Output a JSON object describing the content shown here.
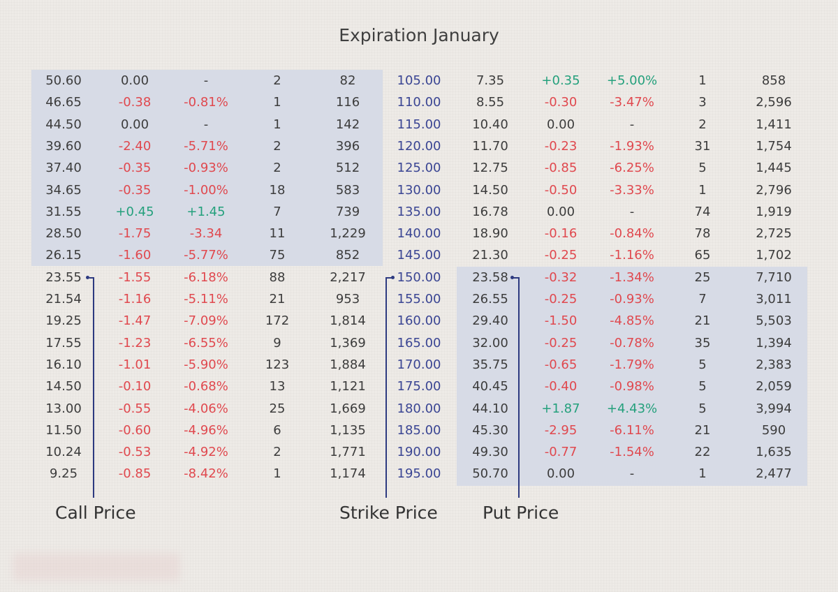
{
  "chart_data": {
    "type": "table",
    "title": "Expiration January",
    "labels": {
      "call": "Call Price",
      "strike": "Strike Price",
      "put": "Put Price"
    },
    "highlight_color": "#d7dbe6",
    "colors": {
      "negative": "#e0484e",
      "positive": "#24a07c",
      "strike": "#3a4593",
      "pointer": "#2d3a80"
    },
    "rows": [
      [
        "50.60",
        "0.00",
        "-",
        "2",
        "82",
        "105.00",
        "7.35",
        "+0.35",
        "+5.00%",
        "1",
        "858"
      ],
      [
        "46.65",
        "-0.38",
        "-0.81%",
        "1",
        "116",
        "110.00",
        "8.55",
        "-0.30",
        "-3.47%",
        "3",
        "2,596"
      ],
      [
        "44.50",
        "0.00",
        "-",
        "1",
        "142",
        "115.00",
        "10.40",
        "0.00",
        "-",
        "2",
        "1,411"
      ],
      [
        "39.60",
        "-2.40",
        "-5.71%",
        "2",
        "396",
        "120.00",
        "11.70",
        "-0.23",
        "-1.93%",
        "31",
        "1,754"
      ],
      [
        "37.40",
        "-0.35",
        "-0.93%",
        "2",
        "512",
        "125.00",
        "12.75",
        "-0.85",
        "-6.25%",
        "5",
        "1,445"
      ],
      [
        "34.65",
        "-0.35",
        "-1.00%",
        "18",
        "583",
        "130.00",
        "14.50",
        "-0.50",
        "-3.33%",
        "1",
        "2,796"
      ],
      [
        "31.55",
        "+0.45",
        "+1.45",
        "7",
        "739",
        "135.00",
        "16.78",
        "0.00",
        "-",
        "74",
        "1,919"
      ],
      [
        "28.50",
        "-1.75",
        "-3.34",
        "11",
        "1,229",
        "140.00",
        "18.90",
        "-0.16",
        "-0.84%",
        "78",
        "2,725"
      ],
      [
        "26.15",
        "-1.60",
        "-5.77%",
        "75",
        "852",
        "145.00",
        "21.30",
        "-0.25",
        "-1.16%",
        "65",
        "1,702"
      ],
      [
        "23.55",
        "-1.55",
        "-6.18%",
        "88",
        "2,217",
        "150.00",
        "23.58",
        "-0.32",
        "-1.34%",
        "25",
        "7,710"
      ],
      [
        "21.54",
        "-1.16",
        "-5.11%",
        "21",
        "953",
        "155.00",
        "26.55",
        "-0.25",
        "-0.93%",
        "7",
        "3,011"
      ],
      [
        "19.25",
        "-1.47",
        "-7.09%",
        "172",
        "1,814",
        "160.00",
        "29.40",
        "-1.50",
        "-4.85%",
        "21",
        "5,503"
      ],
      [
        "17.55",
        "-1.23",
        "-6.55%",
        "9",
        "1,369",
        "165.00",
        "32.00",
        "-0.25",
        "-0.78%",
        "35",
        "1,394"
      ],
      [
        "16.10",
        "-1.01",
        "-5.90%",
        "123",
        "1,884",
        "170.00",
        "35.75",
        "-0.65",
        "-1.79%",
        "5",
        "2,383"
      ],
      [
        "14.50",
        "-0.10",
        "-0.68%",
        "13",
        "1,121",
        "175.00",
        "40.45",
        "-0.40",
        "-0.98%",
        "5",
        "2,059"
      ],
      [
        "13.00",
        "-0.55",
        "-4.06%",
        "25",
        "1,669",
        "180.00",
        "44.10",
        "+1.87",
        "+4.43%",
        "5",
        "3,994"
      ],
      [
        "11.50",
        "-0.60",
        "-4.96%",
        "6",
        "1,135",
        "185.00",
        "45.30",
        "-2.95",
        "-6.11%",
        "21",
        "590"
      ],
      [
        "10.24",
        "-0.53",
        "-4.92%",
        "2",
        "1,771",
        "190.00",
        "49.30",
        "-0.77",
        "-1.54%",
        "22",
        "1,635"
      ],
      [
        "9.25",
        "-0.85",
        "-8.42%",
        "1",
        "1,174",
        "195.00",
        "50.70",
        "0.00",
        "-",
        "1",
        "2,477"
      ]
    ]
  }
}
